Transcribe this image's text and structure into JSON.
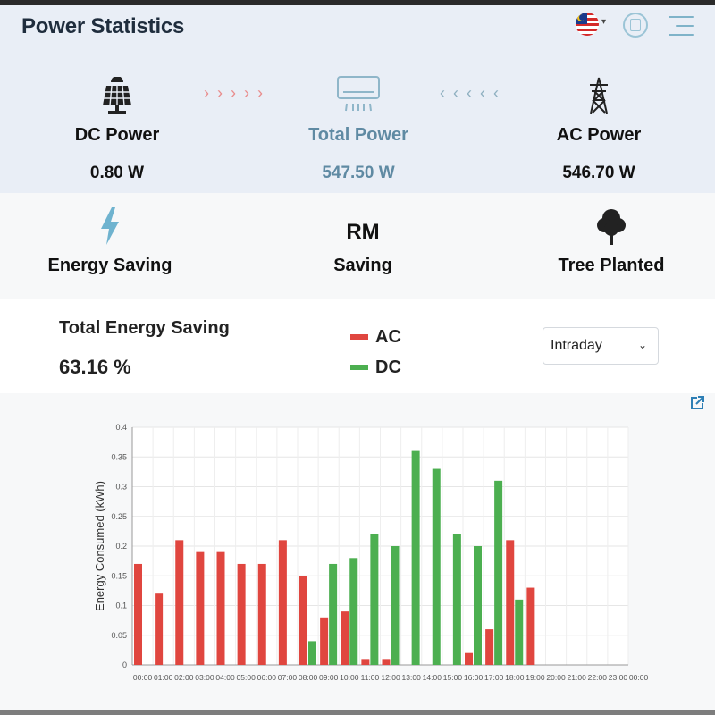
{
  "header": {
    "title": "Power Statistics",
    "flag_icon": "malaysia-flag-icon",
    "profile_icon": "device-icon",
    "menu_icon": "hamburger-menu-icon"
  },
  "power": {
    "dc": {
      "label": "DC Power",
      "value": "0.80 W",
      "icon": "solar-panel-icon"
    },
    "total": {
      "label": "Total Power",
      "value": "547.50 W",
      "icon": "air-conditioner-icon"
    },
    "ac": {
      "label": "AC Power",
      "value": "546.70 W",
      "icon": "power-tower-icon"
    },
    "arrows_right": "›››››",
    "arrows_left": "‹‹‹‹‹"
  },
  "savings": {
    "energy_label": "Energy Saving",
    "currency": "RM",
    "saving_label": "Saving",
    "tree_label": "Tree Planted"
  },
  "summary": {
    "title": "Total Energy Saving",
    "value": "63.16 %",
    "legend": [
      {
        "label": "AC",
        "color": "#e0463f"
      },
      {
        "label": "DC",
        "color": "#4caf50"
      }
    ],
    "period_select": "Intraday"
  },
  "chart_data": {
    "type": "bar",
    "ylabel": "Energy Consumed (kWh)",
    "xlabel": "",
    "ylim": [
      0,
      0.4
    ],
    "yticks": [
      "0",
      "0.05",
      "0.1",
      "0.15",
      "0.2",
      "0.25",
      "0.3",
      "0.35",
      "0.4"
    ],
    "grid": true,
    "categories": [
      "00:00",
      "01:00",
      "02:00",
      "03:00",
      "04:00",
      "05:00",
      "06:00",
      "07:00",
      "08:00",
      "09:00",
      "10:00",
      "11:00",
      "12:00",
      "13:00",
      "14:00",
      "15:00",
      "16:00",
      "17:00",
      "18:00",
      "19:00",
      "20:00",
      "21:00",
      "22:00",
      "23:00",
      "00:00"
    ],
    "series": [
      {
        "name": "AC",
        "color": "#e0463f",
        "values": [
          0.17,
          0.12,
          0.21,
          0.19,
          0.19,
          0.17,
          0.17,
          0.21,
          0.15,
          0.08,
          0.09,
          0.01,
          0.01,
          0,
          0,
          0,
          0.02,
          0.06,
          0.21,
          0.13,
          0,
          0,
          0,
          0,
          0
        ]
      },
      {
        "name": "DC",
        "color": "#4caf50",
        "values": [
          0,
          0,
          0,
          0,
          0,
          0,
          0,
          0,
          0.04,
          0.17,
          0.18,
          0.22,
          0.2,
          0.36,
          0.33,
          0.22,
          0.2,
          0.31,
          0.11,
          0,
          0,
          0,
          0,
          0,
          0
        ]
      }
    ]
  }
}
